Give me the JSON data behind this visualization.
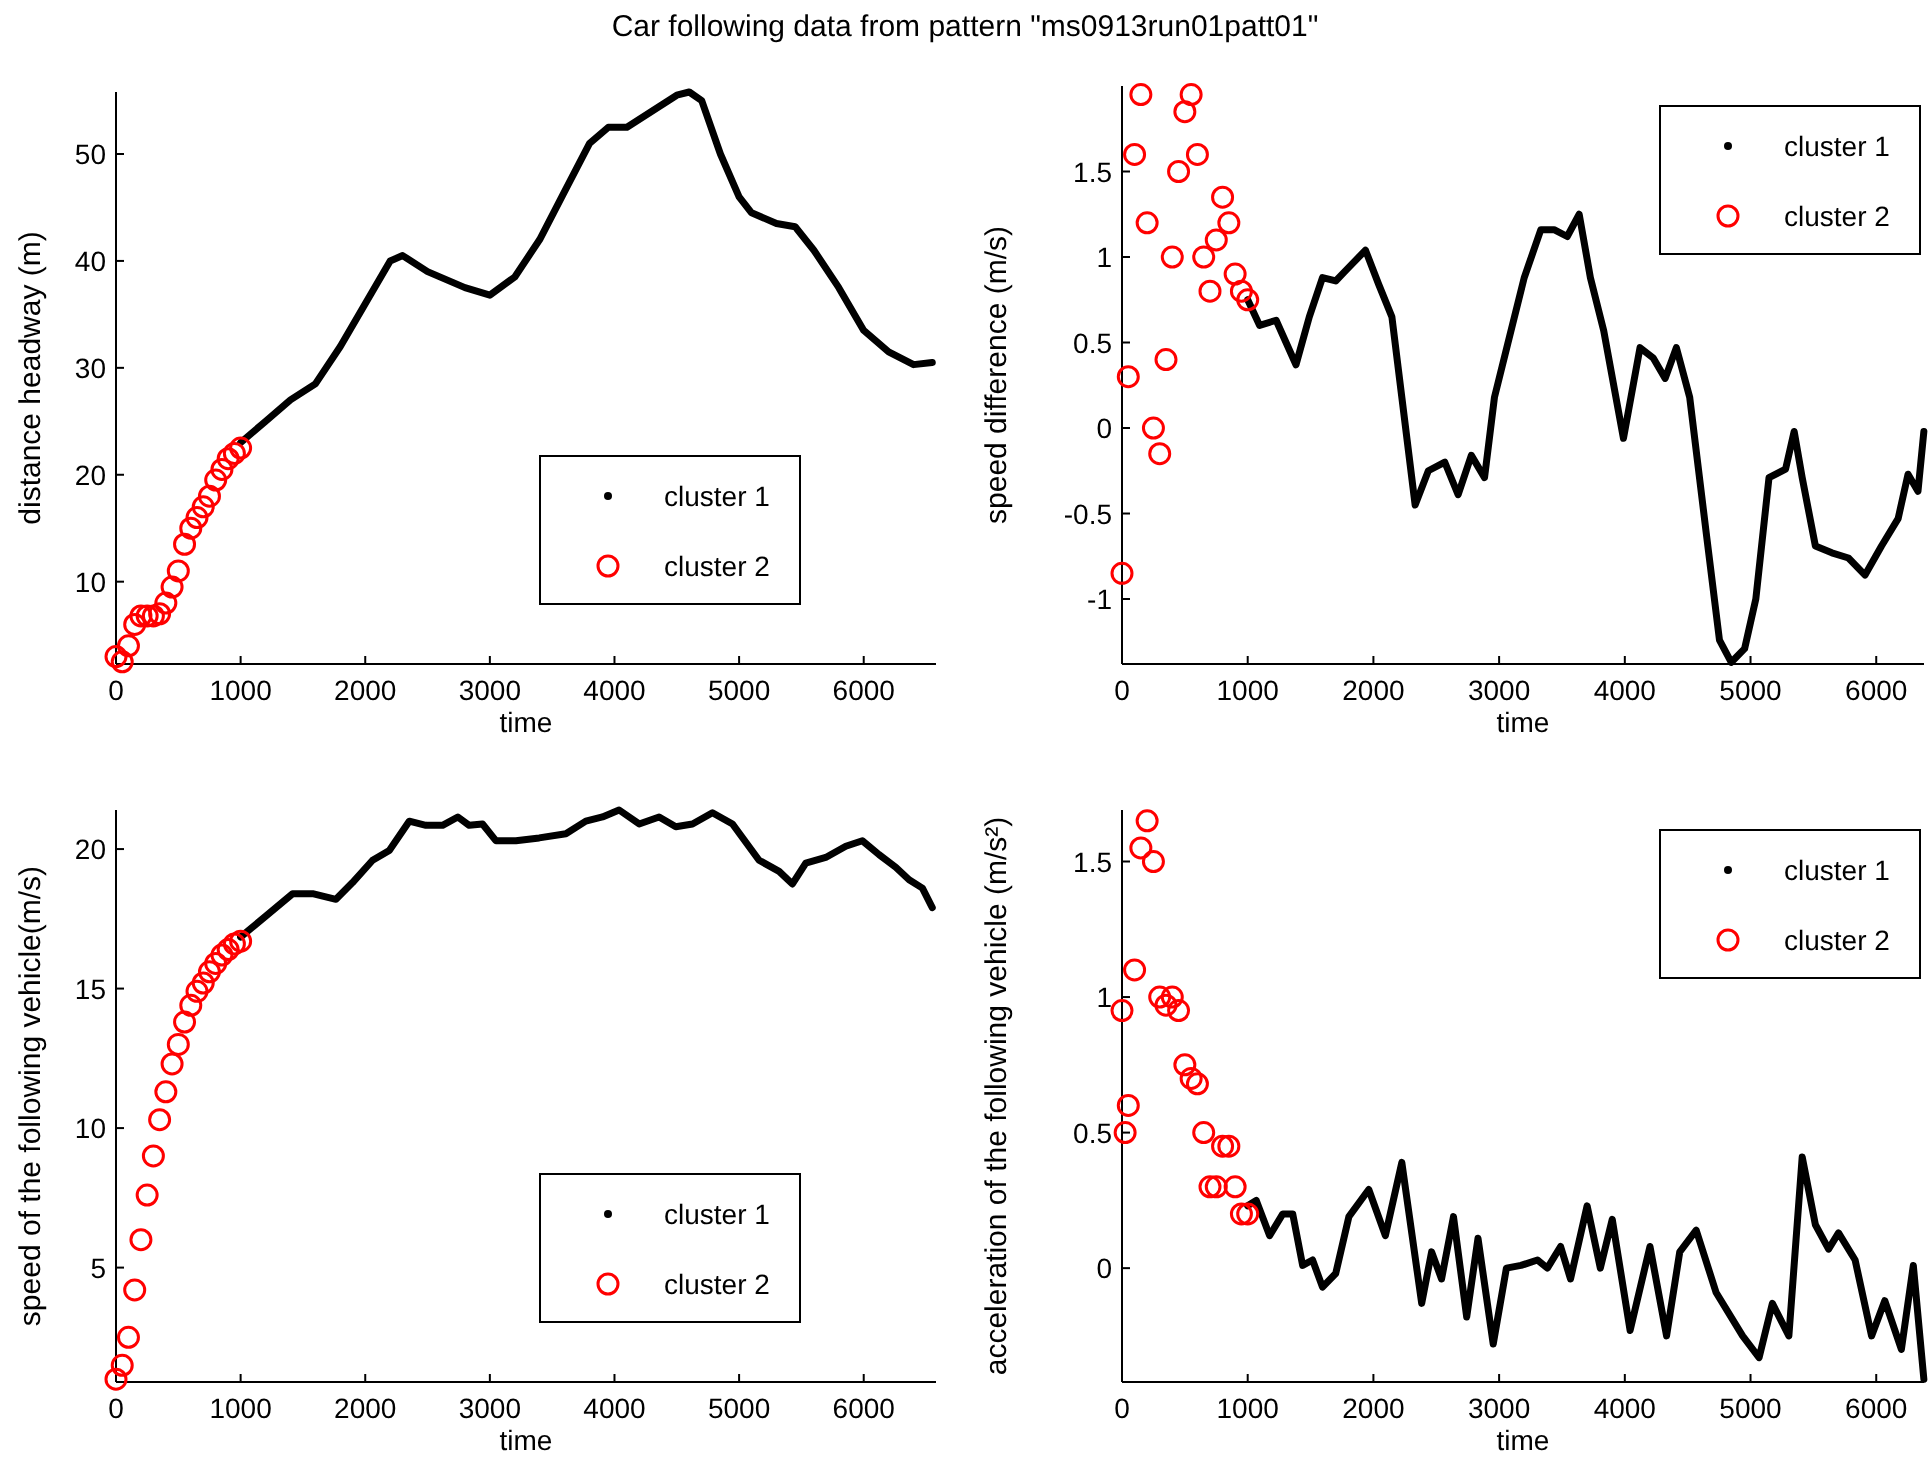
{
  "chart_data": [
    {
      "type": "line",
      "title": "Car following data from pattern  \"ms0913run01patt01\"",
      "xlabel": "time",
      "ylabel": "distance headway (m)",
      "xlim": [
        0,
        6580
      ],
      "xticks": [
        0,
        1000,
        2000,
        3000,
        4000,
        5000,
        6000
      ],
      "ylim": [
        2.3,
        55.8
      ],
      "yticks": [
        10,
        20,
        30,
        40,
        50
      ],
      "legend": "bottom right",
      "grid": false,
      "series": [
        {
          "name": "cluster 1",
          "color": "#000000",
          "marker": "none",
          "x": [
            1000,
            1200,
            1400,
            1600,
            1800,
            2000,
            2200,
            2300,
            2500,
            2800,
            3000,
            3200,
            3400,
            3600,
            3800,
            3950,
            4100,
            4300,
            4500,
            4600,
            4700,
            4850,
            5000,
            5100,
            5300,
            5450,
            5600,
            5800,
            6000,
            6200,
            6400,
            6550
          ],
          "values": [
            23,
            25,
            27,
            28.5,
            32,
            36,
            40,
            40.5,
            39,
            37.5,
            36.8,
            38.5,
            42,
            46.5,
            51,
            52.5,
            52.5,
            54,
            55.5,
            55.8,
            55,
            50,
            46,
            44.5,
            43.5,
            43.2,
            41,
            37.5,
            33.5,
            31.5,
            30.3,
            30.5
          ]
        },
        {
          "name": "cluster 2",
          "color": "#ff0000",
          "type": "scatter",
          "marker": "circle",
          "x": [
            0,
            50,
            100,
            150,
            200,
            250,
            300,
            350,
            400,
            450,
            500,
            550,
            600,
            650,
            700,
            750,
            800,
            850,
            900,
            950,
            1000
          ],
          "values": [
            3,
            2.5,
            4,
            6,
            6.8,
            6.8,
            6.8,
            7,
            8,
            9.5,
            11,
            13.5,
            15,
            16,
            17,
            18,
            19.5,
            20.5,
            21.5,
            22,
            22.5
          ]
        }
      ]
    },
    {
      "type": "line",
      "xlabel": "time",
      "ylabel": "speed difference (m/s)",
      "xlim": [
        0,
        6380
      ],
      "xticks": [
        0,
        1000,
        2000,
        3000,
        4000,
        5000,
        6000
      ],
      "ylim": [
        -1.38,
        2.0
      ],
      "yticks": [
        -1,
        -0.5,
        0,
        0.5,
        1,
        1.5
      ],
      "legend": "top right",
      "grid": false,
      "series": [
        {
          "name": "cluster 1",
          "color": "#000000",
          "marker": "none",
          "x": [
            1000,
            1095,
            1226,
            1384,
            1490,
            1595,
            1700,
            1779,
            1937,
            2042,
            2147,
            2226,
            2332,
            2437,
            2568,
            2674,
            2779,
            2884,
            2963,
            3068,
            3200,
            3332,
            3437,
            3542,
            3637,
            3726,
            3832,
            3989,
            4121,
            4226,
            4321,
            4410,
            4516,
            4647,
            4753,
            4847,
            4953,
            5042,
            5147,
            5279,
            5347,
            5411,
            5516,
            5647,
            5779,
            5911,
            6042,
            6174,
            6253,
            6332,
            6379
          ],
          "values": [
            0.75,
            0.6,
            0.63,
            0.37,
            0.65,
            0.88,
            0.86,
            0.92,
            1.04,
            0.84,
            0.65,
            0.18,
            -0.45,
            -0.25,
            -0.2,
            -0.39,
            -0.16,
            -0.29,
            0.18,
            0.49,
            0.88,
            1.16,
            1.16,
            1.12,
            1.25,
            0.88,
            0.57,
            -0.06,
            0.47,
            0.41,
            0.29,
            0.47,
            0.18,
            -0.61,
            -1.24,
            -1.37,
            -1.29,
            -1.0,
            -0.29,
            -0.24,
            -0.02,
            -0.29,
            -0.69,
            -0.73,
            -0.76,
            -0.86,
            -0.69,
            -0.53,
            -0.27,
            -0.37,
            -0.02
          ]
        },
        {
          "name": "cluster 2",
          "color": "#ff0000",
          "type": "scatter",
          "marker": "circle",
          "x": [
            0,
            50,
            100,
            150,
            200,
            250,
            300,
            350,
            400,
            450,
            500,
            550,
            600,
            650,
            700,
            750,
            800,
            850,
            900,
            950,
            1000
          ],
          "values": [
            -0.85,
            0.3,
            1.6,
            1.95,
            1.2,
            0.0,
            -0.15,
            0.4,
            1.0,
            1.5,
            1.85,
            1.95,
            1.6,
            1.0,
            0.8,
            1.1,
            1.35,
            1.2,
            0.9,
            0.8,
            0.75
          ]
        }
      ]
    },
    {
      "type": "line",
      "xlabel": "time",
      "ylabel": "speed of the following vehicle(m/s)",
      "xlim": [
        0,
        6580
      ],
      "xticks": [
        0,
        1000,
        2000,
        3000,
        4000,
        5000,
        6000
      ],
      "ylim": [
        0.9,
        21.4
      ],
      "yticks": [
        5,
        10,
        15,
        20
      ],
      "legend": "bottom right",
      "grid": false,
      "series": [
        {
          "name": "cluster 1",
          "color": "#000000",
          "marker": "none",
          "x": [
            1000,
            1203,
            1417,
            1578,
            1765,
            1898,
            2059,
            2193,
            2353,
            2487,
            2620,
            2743,
            2834,
            2941,
            3048,
            3209,
            3396,
            3610,
            3770,
            3904,
            4037,
            4198,
            4358,
            4492,
            4626,
            4786,
            4947,
            5160,
            5321,
            5428,
            5535,
            5695,
            5856,
            5989,
            6123,
            6257,
            6364,
            6471,
            6550
          ],
          "values": [
            16.85,
            17.6,
            18.4,
            18.4,
            18.2,
            18.8,
            19.6,
            19.95,
            21.0,
            20.85,
            20.85,
            21.15,
            20.85,
            20.9,
            20.3,
            20.3,
            20.4,
            20.55,
            21.0,
            21.15,
            21.4,
            20.9,
            21.15,
            20.8,
            20.9,
            21.3,
            20.9,
            19.6,
            19.2,
            18.75,
            19.5,
            19.7,
            20.1,
            20.3,
            19.8,
            19.35,
            18.9,
            18.6,
            17.9
          ]
        },
        {
          "name": "cluster 2",
          "color": "#ff0000",
          "type": "scatter",
          "marker": "circle",
          "x": [
            0,
            50,
            100,
            150,
            200,
            250,
            300,
            350,
            400,
            450,
            500,
            550,
            600,
            650,
            700,
            750,
            800,
            850,
            900,
            950,
            1000
          ],
          "values": [
            1.0,
            1.5,
            2.5,
            4.2,
            6.0,
            7.6,
            9.0,
            10.3,
            11.3,
            12.3,
            13.0,
            13.8,
            14.4,
            14.9,
            15.2,
            15.6,
            15.9,
            16.2,
            16.4,
            16.6,
            16.7
          ]
        }
      ]
    },
    {
      "type": "line",
      "xlabel": "time",
      "ylabel": "acceleration of the following vehicle (m/s²)",
      "xlim": [
        0,
        6380
      ],
      "xticks": [
        0,
        1000,
        2000,
        3000,
        4000,
        5000,
        6000
      ],
      "ylim": [
        -0.42,
        1.69
      ],
      "yticks": [
        0,
        0.5,
        1,
        1.5
      ],
      "legend": "top right",
      "grid": false,
      "series": [
        {
          "name": "cluster 1",
          "color": "#000000",
          "marker": "none",
          "x": [
            1000,
            1068,
            1174,
            1279,
            1358,
            1437,
            1516,
            1595,
            1700,
            1805,
            1963,
            2095,
            2226,
            2384,
            2463,
            2542,
            2637,
            2742,
            2832,
            2953,
            3058,
            3174,
            3305,
            3384,
            3489,
            3568,
            3700,
            3805,
            3900,
            4042,
            4200,
            4332,
            4437,
            4568,
            4726,
            4937,
            5068,
            5174,
            5305,
            5411,
            5516,
            5621,
            5700,
            5832,
            5963,
            6068,
            6200,
            6295,
            6379
          ],
          "values": [
            0.23,
            0.25,
            0.12,
            0.2,
            0.2,
            0.01,
            0.03,
            -0.07,
            -0.02,
            0.19,
            0.29,
            0.12,
            0.39,
            -0.13,
            0.06,
            -0.04,
            0.19,
            -0.18,
            0.11,
            -0.28,
            0.0,
            0.01,
            0.03,
            0.0,
            0.08,
            -0.04,
            0.23,
            0.0,
            0.18,
            -0.23,
            0.08,
            -0.25,
            0.06,
            0.14,
            -0.09,
            -0.25,
            -0.33,
            -0.13,
            -0.25,
            0.41,
            0.16,
            0.07,
            0.13,
            0.03,
            -0.25,
            -0.12,
            -0.3,
            0.01,
            -0.41
          ]
        },
        {
          "name": "cluster 2",
          "color": "#ff0000",
          "type": "scatter",
          "marker": "circle",
          "x": [
            0,
            25,
            50,
            100,
            150,
            200,
            250,
            300,
            350,
            400,
            450,
            500,
            550,
            600,
            650,
            700,
            750,
            800,
            850,
            900,
            950,
            1000
          ],
          "values": [
            0.95,
            0.5,
            0.6,
            1.1,
            1.55,
            1.65,
            1.5,
            1.0,
            0.97,
            1.0,
            0.95,
            0.75,
            0.7,
            0.68,
            0.5,
            0.3,
            0.3,
            0.45,
            0.45,
            0.3,
            0.2,
            0.2
          ]
        }
      ]
    }
  ]
}
